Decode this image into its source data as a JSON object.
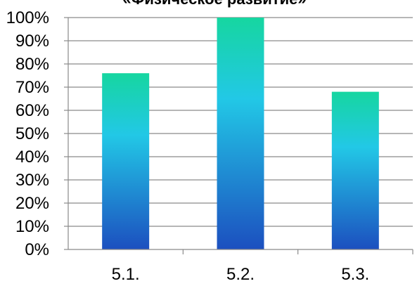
{
  "chart_data": {
    "type": "bar",
    "title": "«Физическое развитие»",
    "xlabel": "",
    "ylabel": "",
    "categories": [
      "5.1.",
      "5.2.",
      "5.3."
    ],
    "values": [
      76,
      100,
      68
    ],
    "ylim": [
      0,
      100
    ],
    "yticks": [
      "0%",
      "10%",
      "20%",
      "30%",
      "40%",
      "50%",
      "60%",
      "70%",
      "80%",
      "90%",
      "100%"
    ],
    "grid": true,
    "legend": "none",
    "colors": {
      "bar_top": "#16d6a0",
      "bar_mid": "#22c8e6",
      "bar_bottom": "#1c4fbf",
      "gridline": "#8a8a8a",
      "axis": "#8a8a8a"
    }
  }
}
